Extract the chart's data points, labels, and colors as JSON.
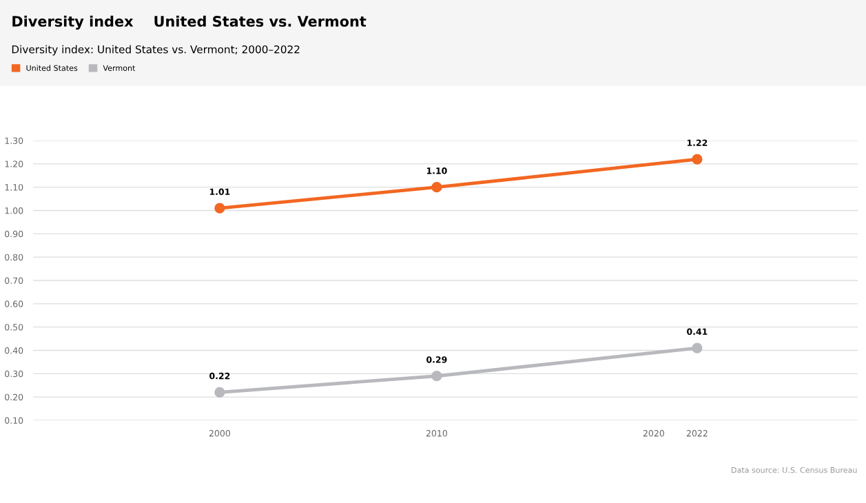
{
  "chart_data": {
    "type": "line",
    "title": "Diversity index    United States vs. Vermont",
    "subtitle": "Diversity index: United States vs. Vermont; 2000–2022",
    "x": [
      2000,
      2010,
      2022
    ],
    "series": [
      {
        "name": "United States",
        "color": "#f26722",
        "values": [
          1.01,
          1.1,
          1.22
        ],
        "value_labels": [
          "1.01",
          "1.10",
          "1.22"
        ]
      },
      {
        "name": "Vermont",
        "color": "#b8b9bd",
        "values": [
          0.22,
          0.29,
          0.41
        ],
        "value_labels": [
          "0.22",
          "0.29",
          "0.41"
        ]
      }
    ],
    "xlim": [
      1991.4,
      2029.4
    ],
    "xticks": [
      2000,
      2010,
      2020,
      2022
    ],
    "ylim": [
      0.1,
      1.3
    ],
    "yticks": [
      {
        "value": 0.1,
        "label": "0.10"
      },
      {
        "value": 0.2,
        "label": "0.20"
      },
      {
        "value": 0.3,
        "label": "0.30"
      },
      {
        "value": 0.4,
        "label": "0.40"
      },
      {
        "value": 0.5,
        "label": "0.50"
      },
      {
        "value": 0.6,
        "label": "0.60"
      },
      {
        "value": 0.7,
        "label": "0.70"
      },
      {
        "value": 0.8,
        "label": "0.80"
      },
      {
        "value": 0.9,
        "label": "0.90"
      },
      {
        "value": 1.0,
        "label": "1.00"
      },
      {
        "value": 1.1,
        "label": "1.10"
      },
      {
        "value": 1.2,
        "label": "1.20"
      },
      {
        "value": 1.3,
        "label": "1.30"
      }
    ],
    "grid": "y",
    "legend": "top left",
    "marker": "circle",
    "line_style": "solid",
    "annotations": [
      "Data source: U.S. Census Bureau"
    ]
  }
}
